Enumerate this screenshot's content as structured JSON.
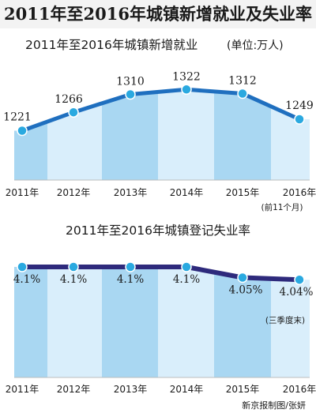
{
  "page_title": "2011年至2016年城镇新增就业及失业率",
  "credit": "新京报制图/张妍",
  "colors": {
    "line1": "#1f6fbf",
    "line2": "#2e2a7c",
    "marker": "#2aa9e0",
    "fill_dark": "#a9d7f2",
    "fill_light": "#d9eefb",
    "background": "#ffffff"
  },
  "chart_data": [
    {
      "type": "area",
      "title": "2011年至2016年城镇新增就业",
      "unit_label": "(单位:万人)",
      "categories": [
        "2011年",
        "2012年",
        "2013年",
        "2014年",
        "2015年",
        "2016年"
      ],
      "values": [
        1221,
        1266,
        1310,
        1322,
        1312,
        1249
      ],
      "value_labels": [
        "1221",
        "1266",
        "1310",
        "1322",
        "1312",
        "1249"
      ],
      "ylim": [
        1100,
        1340
      ],
      "note": "(前11个月)",
      "grid": false
    },
    {
      "type": "area",
      "title": "2011年至2016年城镇登记失业率",
      "categories": [
        "2011年",
        "2012年",
        "2013年",
        "2014年",
        "2015年",
        "2016年"
      ],
      "values": [
        4.1,
        4.1,
        4.1,
        4.1,
        4.05,
        4.04
      ],
      "value_labels": [
        "4.1%",
        "4.1%",
        "4.1%",
        "4.1%",
        "4.05%",
        "4.04%"
      ],
      "ylim": [
        3.58,
        4.1
      ],
      "note": "(三季度末)",
      "grid": false
    }
  ]
}
